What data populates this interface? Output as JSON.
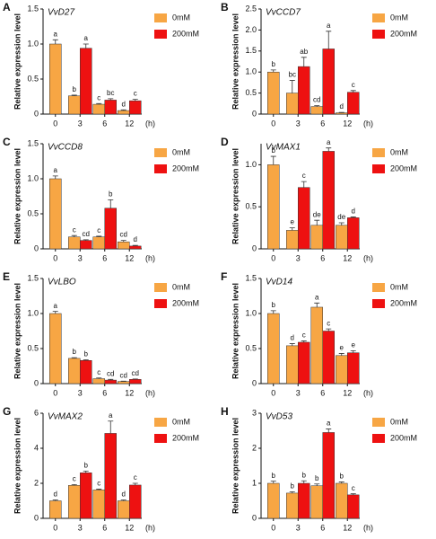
{
  "chart_data": [
    {
      "type": "bar",
      "panel": "A",
      "title": "VvD27",
      "y_label": "Relative expression level",
      "x_unit": "(h)",
      "categories": [
        "0",
        "3",
        "6",
        "12"
      ],
      "ylim": [
        0,
        1.5
      ],
      "yticks": [
        0,
        0.5,
        {
          "value": 1,
          "label": "1.0"
        },
        1.5
      ],
      "series": [
        {
          "name": "0mM",
          "color": "#f7a644",
          "values": [
            1.0,
            0.26,
            0.14,
            0.05
          ],
          "errors": [
            0.06,
            0.01,
            0.01,
            0.01
          ],
          "letters": [
            "a",
            "b",
            "c",
            "d"
          ]
        },
        {
          "name": "200mM",
          "color": "#ee1111",
          "values": [
            null,
            0.94,
            0.2,
            0.19
          ],
          "errors": [
            null,
            0.06,
            0.02,
            0.02
          ],
          "letters": [
            null,
            "a",
            "bc",
            "c"
          ]
        }
      ]
    },
    {
      "type": "bar",
      "panel": "B",
      "title": "VvCCD7",
      "y_label": "Relative expression level",
      "x_unit": "(h)",
      "categories": [
        "0",
        "3",
        "6",
        "12"
      ],
      "ylim": [
        0,
        2.5
      ],
      "yticks": [
        0,
        0.5,
        {
          "value": 1,
          "label": "1.0"
        },
        1.5,
        {
          "value": 2,
          "label": "2.0"
        },
        2.5
      ],
      "series": [
        {
          "name": "0mM",
          "color": "#f7a644",
          "values": [
            1.0,
            0.5,
            0.18,
            0.03
          ],
          "errors": [
            0.05,
            0.3,
            0.02,
            0.01
          ],
          "letters": [
            "b",
            "bc",
            "cd",
            "d"
          ]
        },
        {
          "name": "200mM",
          "color": "#ee1111",
          "values": [
            null,
            1.13,
            1.55,
            0.52
          ],
          "errors": [
            null,
            0.22,
            0.42,
            0.04
          ],
          "letters": [
            null,
            "ab",
            "a",
            "c"
          ]
        }
      ]
    },
    {
      "type": "bar",
      "panel": "C",
      "title": "VvCCD8",
      "y_label": "Relative expression level",
      "x_unit": "(h)",
      "categories": [
        "0",
        "3",
        "6",
        "12"
      ],
      "ylim": [
        0,
        1.5
      ],
      "yticks": [
        0,
        0.5,
        {
          "value": 1,
          "label": "1.0"
        },
        1.5
      ],
      "series": [
        {
          "name": "0mM",
          "color": "#f7a644",
          "values": [
            1.0,
            0.17,
            0.17,
            0.1
          ],
          "errors": [
            0.04,
            0.02,
            0.01,
            0.02
          ],
          "letters": [
            "a",
            "c",
            "c",
            "cd"
          ]
        },
        {
          "name": "200mM",
          "color": "#ee1111",
          "values": [
            null,
            0.12,
            0.58,
            0.04
          ],
          "errors": [
            null,
            0.01,
            0.12,
            0.01
          ],
          "letters": [
            null,
            "cd",
            "b",
            "d"
          ]
        }
      ]
    },
    {
      "type": "bar",
      "panel": "D",
      "title": "VvMAX1",
      "y_label": "Relative expression level",
      "x_unit": "(h)",
      "categories": [
        "0",
        "3",
        "6",
        "12"
      ],
      "ylim": [
        0,
        1.25
      ],
      "yticks": [
        0,
        0.5,
        {
          "value": 1,
          "label": "1.0"
        }
      ],
      "series": [
        {
          "name": "0mM",
          "color": "#f7a644",
          "values": [
            1.0,
            0.22,
            0.28,
            0.28
          ],
          "errors": [
            0.1,
            0.03,
            0.06,
            0.03
          ],
          "letters": [
            "b",
            "e",
            "de",
            "de"
          ]
        },
        {
          "name": "200mM",
          "color": "#ee1111",
          "values": [
            null,
            0.73,
            1.16,
            0.37
          ],
          "errors": [
            null,
            0.07,
            0.04,
            0.01
          ],
          "letters": [
            null,
            "c",
            "a",
            "d"
          ]
        }
      ]
    },
    {
      "type": "bar",
      "panel": "E",
      "title": "VvLBO",
      "y_label": "Relative expression level",
      "x_unit": "(h)",
      "categories": [
        "0",
        "3",
        "6",
        "12"
      ],
      "ylim": [
        0,
        1.5
      ],
      "yticks": [
        0,
        0.5,
        {
          "value": 1,
          "label": "1.0"
        },
        1.5
      ],
      "series": [
        {
          "name": "0mM",
          "color": "#f7a644",
          "values": [
            1.0,
            0.36,
            0.07,
            0.03
          ],
          "errors": [
            0.03,
            0.01,
            0.01,
            0.005
          ],
          "letters": [
            "a",
            "b",
            "c",
            "cd"
          ]
        },
        {
          "name": "200mM",
          "color": "#ee1111",
          "values": [
            null,
            0.33,
            0.05,
            0.06
          ],
          "errors": [
            null,
            0.01,
            0.01,
            0.005
          ],
          "letters": [
            null,
            "b",
            "cd",
            "cd"
          ]
        }
      ]
    },
    {
      "type": "bar",
      "panel": "F",
      "title": "VvD14",
      "y_label": "Relative expression level",
      "x_unit": "(h)",
      "categories": [
        "0",
        "3",
        "6",
        "12"
      ],
      "ylim": [
        0,
        1.5
      ],
      "yticks": [
        0,
        0.5,
        {
          "value": 1,
          "label": "1.0"
        },
        1.5
      ],
      "series": [
        {
          "name": "0mM",
          "color": "#f7a644",
          "values": [
            1.0,
            0.54,
            1.09,
            0.4
          ],
          "errors": [
            0.04,
            0.03,
            0.06,
            0.03
          ],
          "letters": [
            "b",
            "d",
            "a",
            "e"
          ]
        },
        {
          "name": "200mM",
          "color": "#ee1111",
          "values": [
            null,
            0.59,
            0.75,
            0.44
          ],
          "errors": [
            null,
            0.02,
            0.03,
            0.03
          ],
          "letters": [
            null,
            "c",
            "c",
            "e"
          ]
        }
      ]
    },
    {
      "type": "bar",
      "panel": "G",
      "title": "VvMAX2",
      "y_label": "Relative expression level",
      "x_unit": "(h)",
      "categories": [
        "0",
        "3",
        "6",
        "12"
      ],
      "ylim": [
        0,
        6
      ],
      "yticks": [
        0,
        2,
        4,
        6
      ],
      "series": [
        {
          "name": "0mM",
          "color": "#f7a644",
          "values": [
            1.0,
            1.88,
            1.62,
            1.0
          ],
          "errors": [
            0.05,
            0.05,
            0.05,
            0.05
          ],
          "letters": [
            "d",
            "c",
            "c",
            "d"
          ]
        },
        {
          "name": "200mM",
          "color": "#ee1111",
          "values": [
            null,
            2.6,
            4.85,
            1.9
          ],
          "errors": [
            null,
            0.1,
            0.7,
            0.1
          ],
          "letters": [
            null,
            "b",
            "a",
            "c"
          ]
        }
      ]
    },
    {
      "type": "bar",
      "panel": "H",
      "title": "VvD53",
      "y_label": "Relative expression level",
      "x_unit": "(h)",
      "categories": [
        "0",
        "3",
        "6",
        "12"
      ],
      "ylim": [
        0,
        3
      ],
      "yticks": [
        0,
        1,
        2,
        3
      ],
      "series": [
        {
          "name": "0mM",
          "color": "#f7a644",
          "values": [
            1.0,
            0.72,
            0.93,
            1.0
          ],
          "errors": [
            0.06,
            0.04,
            0.05,
            0.04
          ],
          "letters": [
            "b",
            "b",
            "b",
            "b"
          ]
        },
        {
          "name": "200mM",
          "color": "#ee1111",
          "values": [
            null,
            1.0,
            2.45,
            0.67
          ],
          "errors": [
            null,
            0.07,
            0.1,
            0.03
          ],
          "letters": [
            null,
            "b",
            "a",
            "c"
          ]
        }
      ]
    }
  ]
}
